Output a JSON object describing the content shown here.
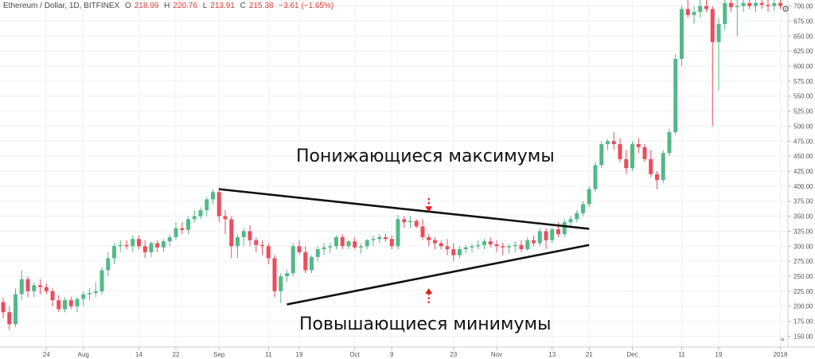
{
  "legend": {
    "symbol": "Ethereum / Dollar, 1D, BITFINEX",
    "open_label": "O",
    "open": "218.99",
    "high_label": "H",
    "high": "220.76",
    "low_label": "L",
    "low": "213.91",
    "close_label": "C",
    "close": "215.38",
    "change": "−3.61 (−1.65%)"
  },
  "icons": {
    "settings": "gear-icon",
    "scroll_right": "double-chevron-right-icon"
  },
  "annotations": {
    "lower_highs": "Понижающиеся максимумы",
    "higher_lows": "Повышающиеся минимумы"
  },
  "colors": {
    "up": "#53b987",
    "down": "#eb4d5c",
    "arrow": "#e11b1b",
    "trend": "#111111"
  },
  "chart_data": {
    "type": "candlestick",
    "title": "Ethereum / Dollar, 1D, BITFINEX",
    "ylim": [
      132,
      710
    ],
    "y_ticks": [
      150,
      175,
      200,
      225,
      250,
      275,
      300,
      325,
      350,
      375,
      400,
      425,
      450,
      475,
      500,
      525,
      550,
      575,
      600,
      625,
      650,
      675,
      700
    ],
    "y_tick_labels": [
      "150.00",
      "175.00",
      "200.00",
      "225.00",
      "250.00",
      "275.00",
      "300.00",
      "325.00",
      "350.00",
      "375.00",
      "400.00",
      "425.00",
      "450.00",
      "475.00",
      "500.00",
      "525.00",
      "550.00",
      "575.00",
      "600.00",
      "625.00",
      "650.00",
      "675.00",
      "700.00"
    ],
    "x_ticks": [
      {
        "index": 7,
        "label": "24"
      },
      {
        "index": 13,
        "label": "Aug"
      },
      {
        "index": 22,
        "label": "14"
      },
      {
        "index": 28,
        "label": "22"
      },
      {
        "index": 35,
        "label": "Sep"
      },
      {
        "index": 43,
        "label": "11"
      },
      {
        "index": 48,
        "label": "19"
      },
      {
        "index": 57,
        "label": "Oct"
      },
      {
        "index": 63,
        "label": "9"
      },
      {
        "index": 73,
        "label": "23"
      },
      {
        "index": 80,
        "label": "Nov"
      },
      {
        "index": 89,
        "label": "13"
      },
      {
        "index": 95,
        "label": "21"
      },
      {
        "index": 102,
        "label": "Dec"
      },
      {
        "index": 110,
        "label": "11"
      },
      {
        "index": 116,
        "label": "19"
      },
      {
        "index": 126,
        "label": "2018"
      }
    ],
    "ohlc": [
      [
        207,
        214,
        180,
        190
      ],
      [
        190,
        200,
        160,
        170
      ],
      [
        170,
        230,
        165,
        220
      ],
      [
        220,
        260,
        210,
        245
      ],
      [
        245,
        250,
        215,
        225
      ],
      [
        225,
        240,
        215,
        235
      ],
      [
        235,
        245,
        220,
        232
      ],
      [
        232,
        238,
        220,
        225
      ],
      [
        225,
        230,
        200,
        210
      ],
      [
        210,
        218,
        190,
        195
      ],
      [
        195,
        215,
        190,
        210
      ],
      [
        210,
        216,
        195,
        200
      ],
      [
        200,
        215,
        190,
        212
      ],
      [
        212,
        225,
        200,
        220
      ],
      [
        220,
        230,
        210,
        222
      ],
      [
        222,
        240,
        215,
        225
      ],
      [
        225,
        265,
        220,
        260
      ],
      [
        260,
        290,
        250,
        280
      ],
      [
        280,
        305,
        270,
        300
      ],
      [
        300,
        310,
        290,
        302
      ],
      [
        302,
        310,
        295,
        300
      ],
      [
        300,
        318,
        290,
        312
      ],
      [
        312,
        318,
        295,
        300
      ],
      [
        300,
        310,
        280,
        290
      ],
      [
        290,
        308,
        282,
        305
      ],
      [
        305,
        310,
        290,
        298
      ],
      [
        298,
        312,
        290,
        308
      ],
      [
        308,
        320,
        300,
        315
      ],
      [
        315,
        340,
        310,
        330
      ],
      [
        330,
        340,
        320,
        327
      ],
      [
        327,
        350,
        320,
        345
      ],
      [
        345,
        360,
        340,
        350
      ],
      [
        350,
        365,
        345,
        360
      ],
      [
        360,
        382,
        350,
        378
      ],
      [
        378,
        395,
        370,
        390
      ],
      [
        390,
        398,
        340,
        350
      ],
      [
        350,
        360,
        320,
        345
      ],
      [
        345,
        350,
        280,
        300
      ],
      [
        300,
        320,
        280,
        315
      ],
      [
        315,
        330,
        300,
        325
      ],
      [
        325,
        335,
        300,
        310
      ],
      [
        310,
        315,
        290,
        302
      ],
      [
        302,
        310,
        285,
        300
      ],
      [
        300,
        305,
        270,
        280
      ],
      [
        280,
        285,
        215,
        225
      ],
      [
        225,
        255,
        205,
        250
      ],
      [
        250,
        260,
        240,
        255
      ],
      [
        255,
        305,
        250,
        300
      ],
      [
        300,
        310,
        285,
        290
      ],
      [
        290,
        300,
        255,
        260
      ],
      [
        260,
        285,
        255,
        282
      ],
      [
        282,
        300,
        275,
        295
      ],
      [
        295,
        305,
        285,
        298
      ],
      [
        298,
        305,
        288,
        300
      ],
      [
        300,
        318,
        295,
        315
      ],
      [
        315,
        320,
        295,
        300
      ],
      [
        300,
        310,
        295,
        308
      ],
      [
        308,
        315,
        295,
        298
      ],
      [
        298,
        305,
        288,
        300
      ],
      [
        300,
        312,
        295,
        310
      ],
      [
        310,
        318,
        300,
        312
      ],
      [
        312,
        320,
        305,
        315
      ],
      [
        315,
        320,
        308,
        312
      ],
      [
        312,
        318,
        295,
        300
      ],
      [
        300,
        352,
        295,
        345
      ],
      [
        345,
        350,
        330,
        340
      ],
      [
        340,
        350,
        330,
        342
      ],
      [
        342,
        345,
        330,
        333
      ],
      [
        333,
        345,
        310,
        315
      ],
      [
        315,
        320,
        300,
        310
      ],
      [
        310,
        315,
        295,
        305
      ],
      [
        305,
        310,
        295,
        300
      ],
      [
        300,
        312,
        285,
        295
      ],
      [
        295,
        305,
        275,
        285
      ],
      [
        285,
        300,
        280,
        295
      ],
      [
        295,
        302,
        288,
        298
      ],
      [
        298,
        304,
        290,
        300
      ],
      [
        300,
        310,
        295,
        302
      ],
      [
        302,
        312,
        295,
        308
      ],
      [
        308,
        315,
        298,
        303
      ],
      [
        303,
        310,
        290,
        300
      ],
      [
        300,
        306,
        285,
        298
      ],
      [
        298,
        304,
        288,
        300
      ],
      [
        300,
        308,
        290,
        302
      ],
      [
        302,
        310,
        290,
        295
      ],
      [
        295,
        315,
        292,
        310
      ],
      [
        310,
        318,
        300,
        305
      ],
      [
        305,
        330,
        300,
        325
      ],
      [
        325,
        330,
        295,
        310
      ],
      [
        310,
        332,
        305,
        328
      ],
      [
        328,
        340,
        315,
        320
      ],
      [
        320,
        345,
        315,
        340
      ],
      [
        340,
        350,
        330,
        345
      ],
      [
        345,
        360,
        340,
        355
      ],
      [
        355,
        375,
        350,
        370
      ],
      [
        370,
        400,
        365,
        395
      ],
      [
        395,
        440,
        390,
        435
      ],
      [
        435,
        475,
        430,
        470
      ],
      [
        470,
        478,
        460,
        475
      ],
      [
        475,
        490,
        460,
        470
      ],
      [
        470,
        480,
        440,
        445
      ],
      [
        445,
        460,
        420,
        430
      ],
      [
        430,
        475,
        425,
        470
      ],
      [
        470,
        480,
        455,
        465
      ],
      [
        465,
        470,
        440,
        445
      ],
      [
        445,
        460,
        415,
        420
      ],
      [
        420,
        425,
        395,
        410
      ],
      [
        410,
        460,
        405,
        455
      ],
      [
        455,
        495,
        450,
        490
      ],
      [
        490,
        620,
        485,
        612
      ],
      [
        612,
        700,
        600,
        695
      ],
      [
        695,
        710,
        680,
        685
      ],
      [
        685,
        700,
        670,
        690
      ],
      [
        690,
        710,
        680,
        700
      ],
      [
        700,
        710,
        690,
        695
      ],
      [
        695,
        700,
        500,
        640
      ],
      [
        640,
        680,
        560,
        670
      ],
      [
        670,
        710,
        660,
        705
      ],
      [
        705,
        710,
        690,
        698
      ],
      [
        698,
        710,
        650,
        700
      ],
      [
        700,
        710,
        690,
        705
      ],
      [
        705,
        710,
        695,
        700
      ],
      [
        700,
        710,
        690,
        705
      ],
      [
        705,
        710,
        695,
        702
      ],
      [
        702,
        710,
        690,
        700
      ],
      [
        700,
        710,
        692,
        705
      ],
      [
        705,
        710,
        695,
        700
      ],
      [
        700,
        710,
        692,
        705
      ]
    ],
    "trendlines": [
      {
        "name": "lower-highs",
        "from": {
          "index": 35,
          "value": 395
        },
        "to": {
          "index": 95,
          "value": 329
        }
      },
      {
        "name": "higher-lows",
        "from": {
          "index": 46,
          "value": 203
        },
        "to": {
          "index": 95,
          "value": 302
        }
      }
    ],
    "arrows": [
      {
        "name": "down-arrow",
        "index": 69,
        "value_from": 380,
        "value_to": 357
      },
      {
        "name": "up-arrow",
        "index": 69,
        "value_from": 205,
        "value_to": 230
      }
    ]
  }
}
